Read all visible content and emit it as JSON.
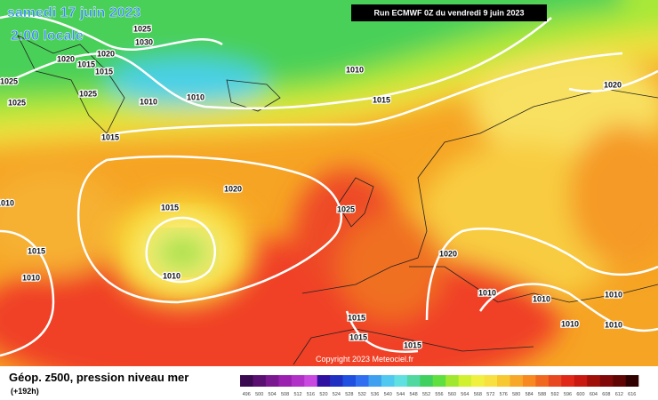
{
  "header": {
    "date": "samedi 17 juin 2023",
    "time": "2:00 locale",
    "run": "Run ECMWF 0Z du vendredi 9 juin 2023"
  },
  "map": {
    "isobar_labels": [
      "1025",
      "1030",
      "1020",
      "1015",
      "1015",
      "1020",
      "1025",
      "1025",
      "1025",
      "1010",
      "1010",
      "1010",
      "1015",
      "1015",
      "1020",
      "1020",
      "1015",
      "1025",
      "1010",
      "1015",
      "1010",
      "1010",
      "1020",
      "1010",
      "1010",
      "1010",
      "1010",
      "1010",
      "1015",
      "1015",
      "1015"
    ],
    "copyright": "Copyright 2023 Meteociel.fr"
  },
  "legend": {
    "title": "Géop. z500, pression niveau mer",
    "lead": "(+192h)",
    "labels": [
      "496",
      "500",
      "504",
      "508",
      "512",
      "516",
      "520",
      "524",
      "528",
      "532",
      "536",
      "540",
      "544",
      "548",
      "552",
      "556",
      "560",
      "564",
      "568",
      "572",
      "576",
      "580",
      "584",
      "588",
      "592",
      "596",
      "600",
      "604",
      "608",
      "612",
      "616"
    ],
    "colors": [
      "#3a0a50",
      "#5a1070",
      "#7a1890",
      "#9a20b0",
      "#b030c8",
      "#c848e0",
      "#3010a0",
      "#2030c0",
      "#2050e0",
      "#3070f0",
      "#40a0f0",
      "#50c8f0",
      "#60e0e0",
      "#50d8a0",
      "#40d060",
      "#60e040",
      "#a0e830",
      "#d0f030",
      "#f0f040",
      "#f8e040",
      "#f8c830",
      "#f8a828",
      "#f88820",
      "#f06820",
      "#e84820",
      "#e02818",
      "#c81810",
      "#a01008",
      "#800808",
      "#600404",
      "#300000"
    ]
  }
}
